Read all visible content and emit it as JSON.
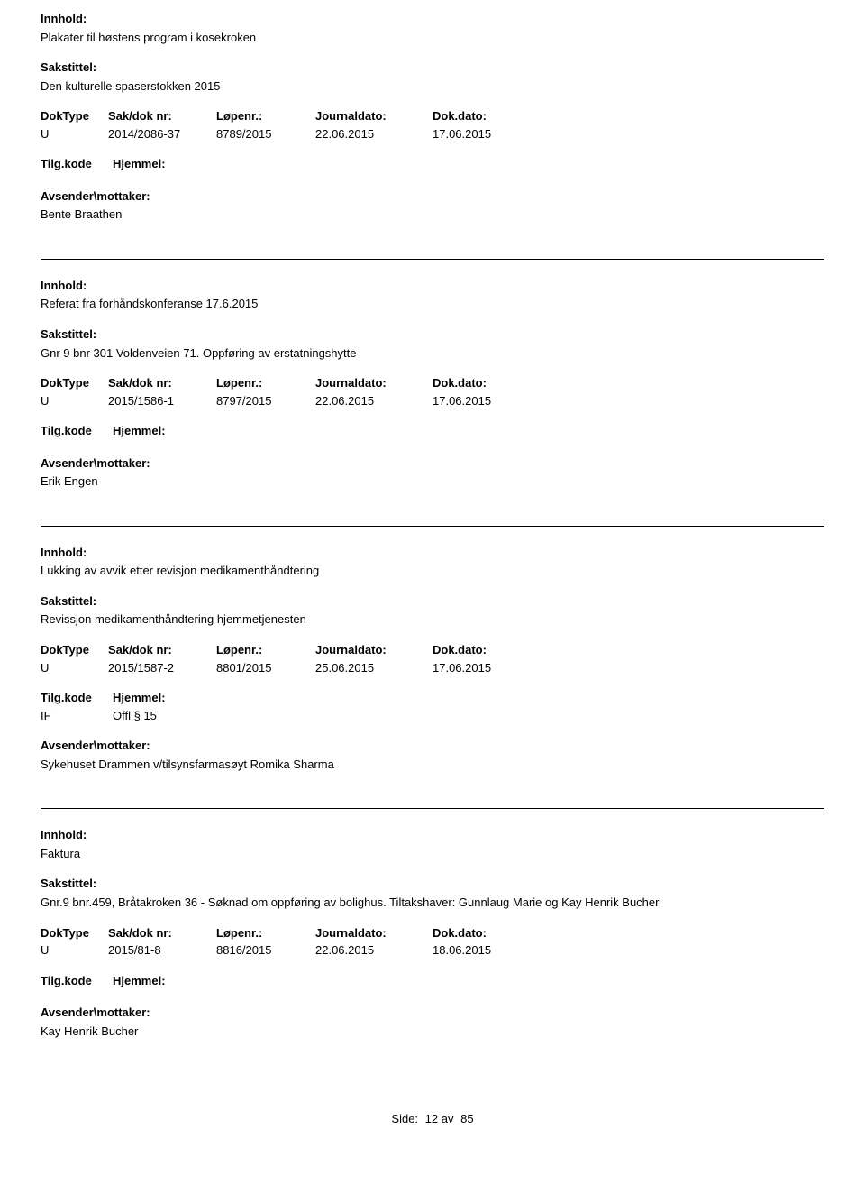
{
  "labels": {
    "innhold": "Innhold:",
    "sakstittel": "Sakstittel:",
    "doktype": "DokType",
    "sakdoknr": "Sak/dok nr:",
    "lopenr": "Løpenr.:",
    "journaldato": "Journaldato:",
    "dokdato": "Dok.dato:",
    "tilgkode": "Tilg.kode",
    "hjemmel": "Hjemmel:",
    "avsender": "Avsender\\mottaker:"
  },
  "records": [
    {
      "innhold": "Plakater til høstens program i kosekroken",
      "sakstittel": "Den kulturelle spaserstokken 2015",
      "doktype": "U",
      "sakdoknr": "2014/2086-37",
      "lopenr": "8789/2015",
      "journaldato": "22.06.2015",
      "dokdato": "17.06.2015",
      "tilgkode": "",
      "hjemmel": "",
      "avsender": "Bente Braathen"
    },
    {
      "innhold": "Referat fra forhåndskonferanse 17.6.2015",
      "sakstittel": "Gnr 9 bnr 301 Voldenveien 71. Oppføring av erstatningshytte",
      "doktype": "U",
      "sakdoknr": "2015/1586-1",
      "lopenr": "8797/2015",
      "journaldato": "22.06.2015",
      "dokdato": "17.06.2015",
      "tilgkode": "",
      "hjemmel": "",
      "avsender": "Erik Engen"
    },
    {
      "innhold": "Lukking av avvik etter revisjon medikamenthåndtering",
      "sakstittel": "Revissjon medikamenthåndtering hjemmetjenesten",
      "doktype": "U",
      "sakdoknr": "2015/1587-2",
      "lopenr": "8801/2015",
      "journaldato": "25.06.2015",
      "dokdato": "17.06.2015",
      "tilgkode": "IF",
      "hjemmel": "Offl § 15",
      "avsender": "Sykehuset Drammen v/tilsynsfarmasøyt Romika Sharma"
    },
    {
      "innhold": "Faktura",
      "sakstittel": "Gnr.9 bnr.459, Bråtakroken 36 - Søknad om oppføring av bolighus. Tiltakshaver: Gunnlaug Marie og Kay Henrik Bucher",
      "doktype": "U",
      "sakdoknr": "2015/81-8",
      "lopenr": "8816/2015",
      "journaldato": "22.06.2015",
      "dokdato": "18.06.2015",
      "tilgkode": "",
      "hjemmel": "",
      "avsender": "Kay Henrik Bucher"
    }
  ],
  "footer": {
    "label": "Side:",
    "page": "12 av",
    "total": "85"
  }
}
